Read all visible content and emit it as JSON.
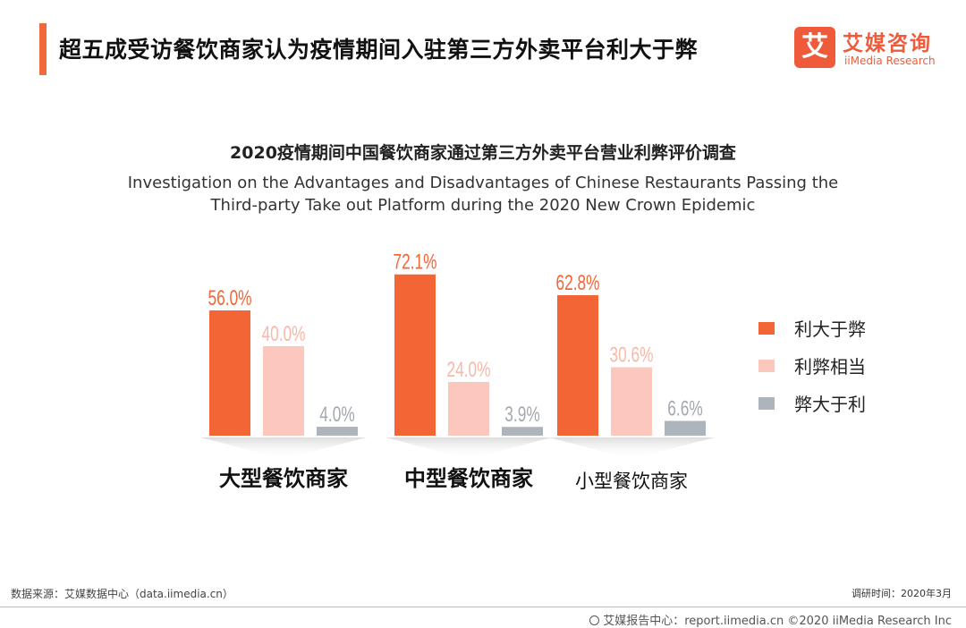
{
  "header": {
    "title": "超五成受访餐饮商家认为疫情期间入驻第三方外卖平台利大于弊"
  },
  "logo": {
    "mark": "艾",
    "cn": "艾媒咨询",
    "en": "iiMedia Research"
  },
  "chart_data": {
    "type": "bar",
    "title": "2020疫情期间中国餐饮商家通过第三方外卖平台营业利弊评价调查",
    "subtitle_lines": [
      "Investigation on the Advantages and Disadvantages of Chinese Restaurants Passing the",
      "Third-party Take out Platform during the 2020 New Crown Epidemic"
    ],
    "categories": [
      "大型餐饮商家",
      "中型餐饮商家",
      "小型餐饮商家"
    ],
    "series": [
      {
        "name": "利大于弊",
        "values": [
          56.0,
          72.1,
          62.8
        ],
        "color": "#f46536",
        "label_color": "#f46536"
      },
      {
        "name": "利弊相当",
        "values": [
          40.0,
          24.0,
          30.6
        ],
        "color": "#fcc8bd",
        "label_color": "#f9b7a8"
      },
      {
        "name": "弊大于利",
        "values": [
          4.0,
          3.9,
          6.6
        ],
        "color": "#aeb4bc",
        "label_color": "#a4a8ae"
      }
    ],
    "value_suffix": "%",
    "ylim": [
      0,
      100
    ],
    "xlabel": "",
    "ylabel": "",
    "grid": false,
    "legend_position": "right"
  },
  "footer": {
    "source": "数据来源：艾媒数据中心（data.iimedia.cn）",
    "survey_time": "调研时间：2020年3月",
    "report": "艾媒报告中心：report.iimedia.cn ©2020  iiMedia Research  Inc"
  }
}
